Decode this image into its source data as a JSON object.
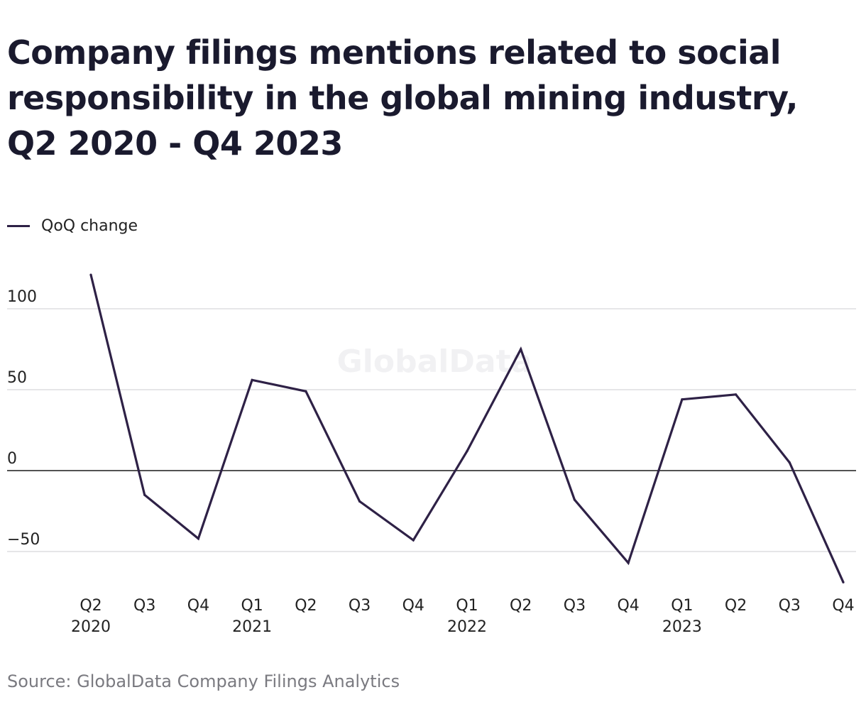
{
  "title": "Company filings mentions related to social responsibility in the global mining industry, Q2 2020 - Q4 2023",
  "legend": {
    "label": "QoQ change",
    "color": "#2e2146"
  },
  "watermark": "GlobalData",
  "source": "Source: GlobalData Company Filings Analytics",
  "chart_data": {
    "type": "line",
    "title": "Company filings mentions related to social responsibility in the global mining industry, Q2 2020 - Q4 2023",
    "xlabel": "",
    "ylabel": "",
    "categories": [
      "Q2 2020",
      "Q3 2020",
      "Q4 2020",
      "Q1 2021",
      "Q2 2021",
      "Q3 2021",
      "Q4 2021",
      "Q1 2022",
      "Q2 2022",
      "Q3 2022",
      "Q4 2022",
      "Q1 2023",
      "Q2 2023",
      "Q3 2023",
      "Q4 2023"
    ],
    "tick_labels": [
      {
        "q": "Q2",
        "y": "2020"
      },
      {
        "q": "Q3",
        "y": ""
      },
      {
        "q": "Q4",
        "y": ""
      },
      {
        "q": "Q1",
        "y": "2021"
      },
      {
        "q": "Q2",
        "y": ""
      },
      {
        "q": "Q3",
        "y": ""
      },
      {
        "q": "Q4",
        "y": ""
      },
      {
        "q": "Q1",
        "y": "2022"
      },
      {
        "q": "Q2",
        "y": ""
      },
      {
        "q": "Q3",
        "y": ""
      },
      {
        "q": "Q4",
        "y": ""
      },
      {
        "q": "Q1",
        "y": "2023"
      },
      {
        "q": "Q2",
        "y": ""
      },
      {
        "q": "Q3",
        "y": ""
      },
      {
        "q": "Q4",
        "y": ""
      }
    ],
    "series": [
      {
        "name": "QoQ change",
        "color": "#2e2146",
        "values": [
          121,
          -15,
          -42,
          56,
          49,
          -19,
          -43,
          12,
          75,
          -18,
          -57,
          44,
          47,
          5,
          -69
        ]
      }
    ],
    "yticks": [
      100,
      50,
      0,
      -50
    ],
    "ytick_labels": [
      "100",
      "50",
      "0",
      "−50"
    ],
    "ylim": [
      -69,
      121
    ],
    "grid": true,
    "legend_position": "top-left"
  }
}
